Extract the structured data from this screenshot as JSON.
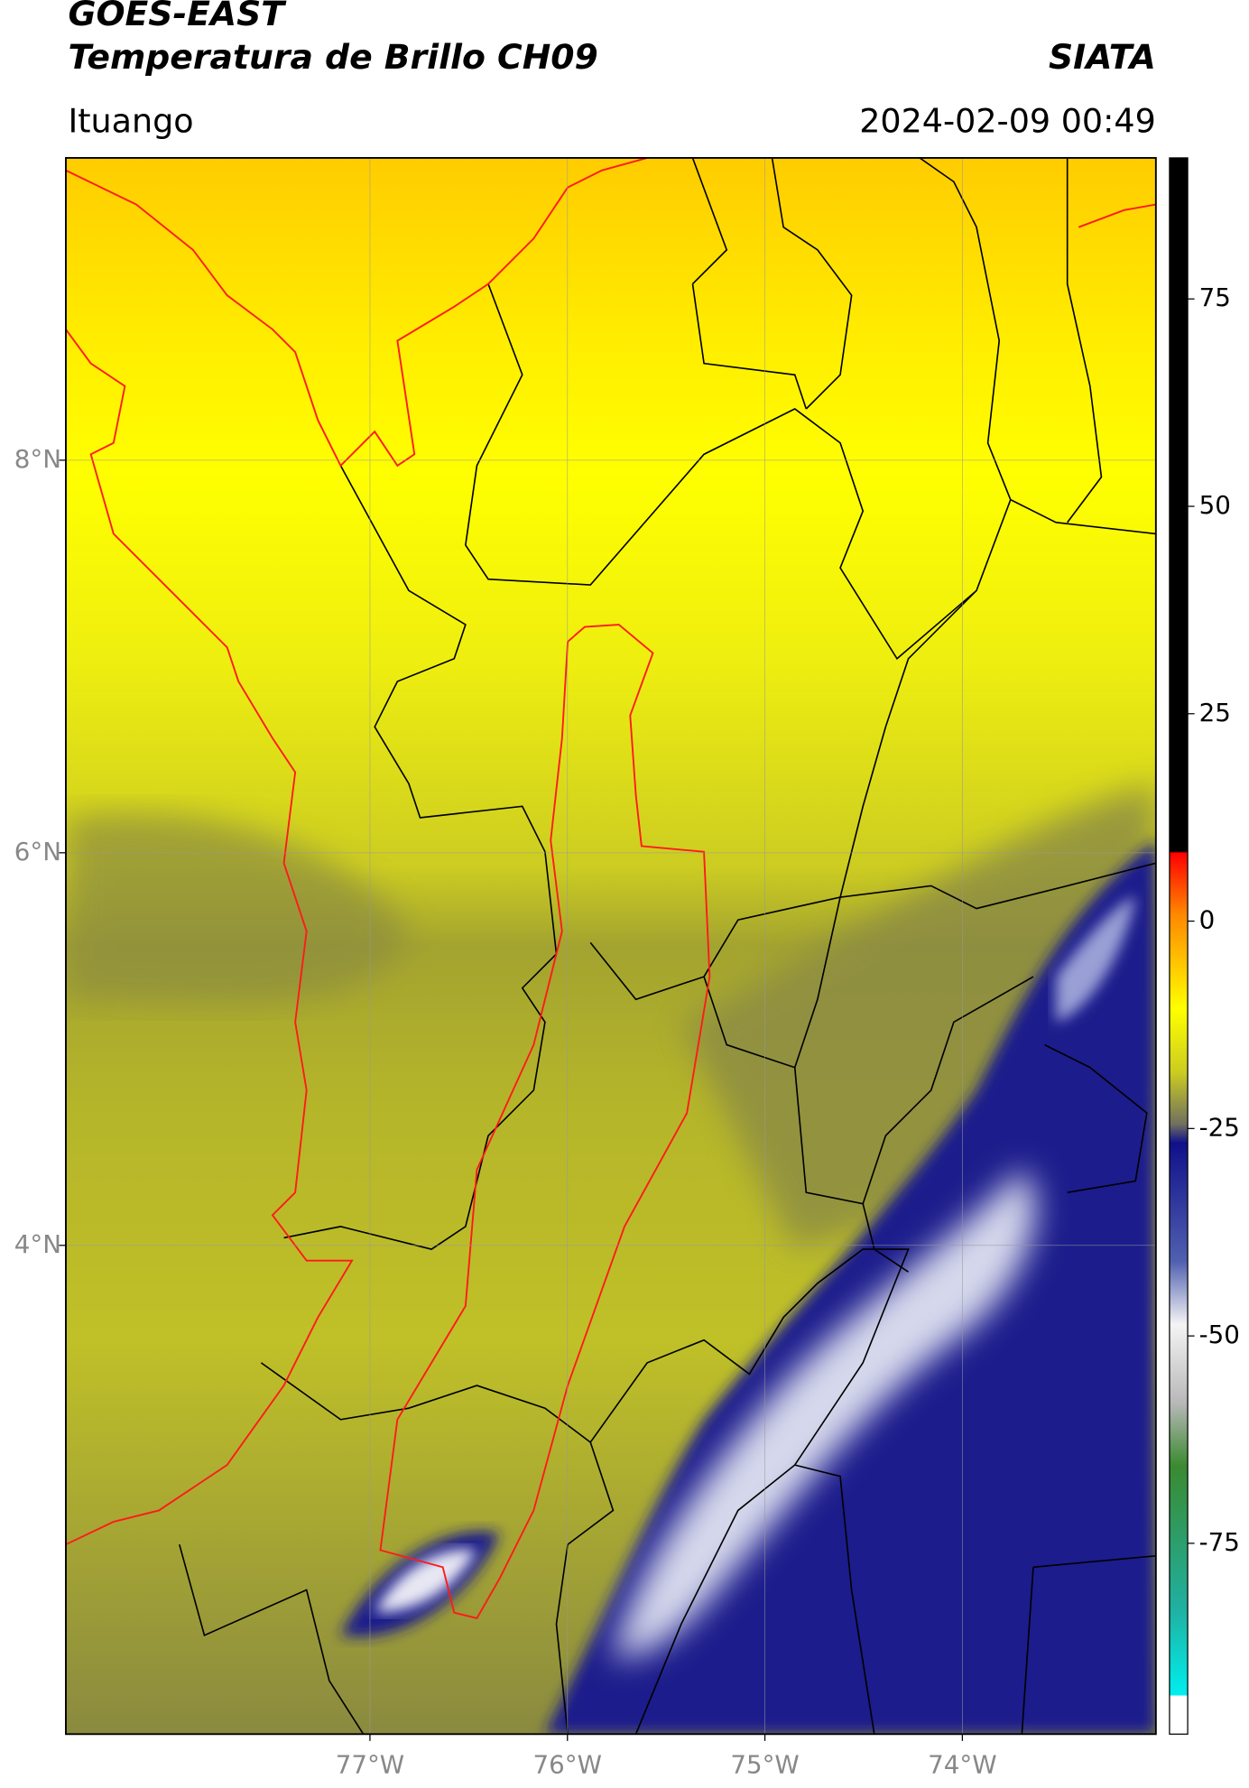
{
  "header": {
    "satellite": "GOES-EAST",
    "product": "Temperatura de Brillo CH09",
    "source": "SIATA",
    "region": "Ituango",
    "datetime": "2024-02-09 00:49"
  },
  "chart_data": {
    "type": "map",
    "xlim": [
      -78.54,
      -73.02
    ],
    "ylim": [
      1.51,
      9.54
    ],
    "xticks": [
      {
        "value": -77,
        "label": "77°W"
      },
      {
        "value": -76,
        "label": "76°W"
      },
      {
        "value": -75,
        "label": "75°W"
      },
      {
        "value": -74,
        "label": "74°W"
      }
    ],
    "yticks": [
      {
        "value": 8,
        "label": "8°N"
      },
      {
        "value": 6,
        "label": "6°N"
      },
      {
        "value": 4,
        "label": "4°N"
      }
    ],
    "clim": [
      -98,
      92
    ],
    "cticks": [
      75,
      50,
      25,
      0,
      -25,
      -50,
      -75
    ],
    "grid": true
  }
}
